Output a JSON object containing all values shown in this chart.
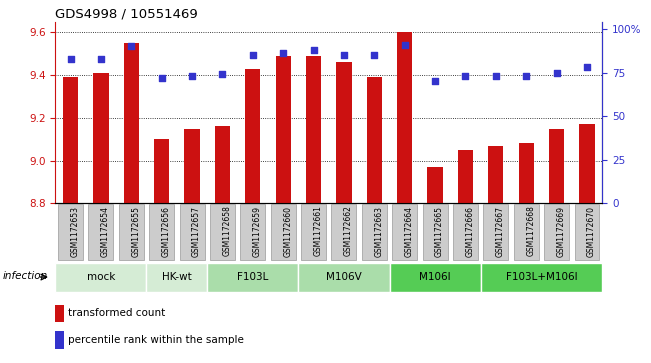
{
  "title": "GDS4998 / 10551469",
  "samples": [
    "GSM1172653",
    "GSM1172654",
    "GSM1172655",
    "GSM1172656",
    "GSM1172657",
    "GSM1172658",
    "GSM1172659",
    "GSM1172660",
    "GSM1172661",
    "GSM1172662",
    "GSM1172663",
    "GSM1172664",
    "GSM1172665",
    "GSM1172666",
    "GSM1172667",
    "GSM1172668",
    "GSM1172669",
    "GSM1172670"
  ],
  "bar_values": [
    9.39,
    9.41,
    9.55,
    9.1,
    9.15,
    9.16,
    9.43,
    9.49,
    9.49,
    9.46,
    9.39,
    9.6,
    8.97,
    9.05,
    9.07,
    9.08,
    9.15,
    9.17
  ],
  "percentile_values": [
    83,
    83,
    90,
    72,
    73,
    74,
    85,
    86,
    88,
    85,
    85,
    91,
    70,
    73,
    73,
    73,
    75,
    78
  ],
  "ylim_left": [
    8.8,
    9.65
  ],
  "ylim_right": [
    0,
    104.17
  ],
  "yticks_left": [
    8.8,
    9.0,
    9.2,
    9.4,
    9.6
  ],
  "yticks_right": [
    0,
    25,
    50,
    75,
    100
  ],
  "ytick_labels_right": [
    "0",
    "25",
    "50",
    "75",
    "100%"
  ],
  "bar_color": "#cc1111",
  "dot_color": "#3333cc",
  "group_labels": [
    "mock",
    "HK-wt",
    "F103L",
    "M106V",
    "M106I",
    "F103L+M106I"
  ],
  "group_ranges": [
    [
      0,
      2
    ],
    [
      3,
      4
    ],
    [
      5,
      7
    ],
    [
      8,
      10
    ],
    [
      11,
      13
    ],
    [
      14,
      17
    ]
  ],
  "group_bg_colors": [
    "#d5ecd5",
    "#d5ecd5",
    "#aaddaa",
    "#aaddaa",
    "#55cc55",
    "#55cc55"
  ],
  "infection_label": "infection",
  "legend_bar_label": "transformed count",
  "legend_dot_label": "percentile rank within the sample",
  "sample_box_color": "#cccccc",
  "sample_box_edge": "#999999"
}
